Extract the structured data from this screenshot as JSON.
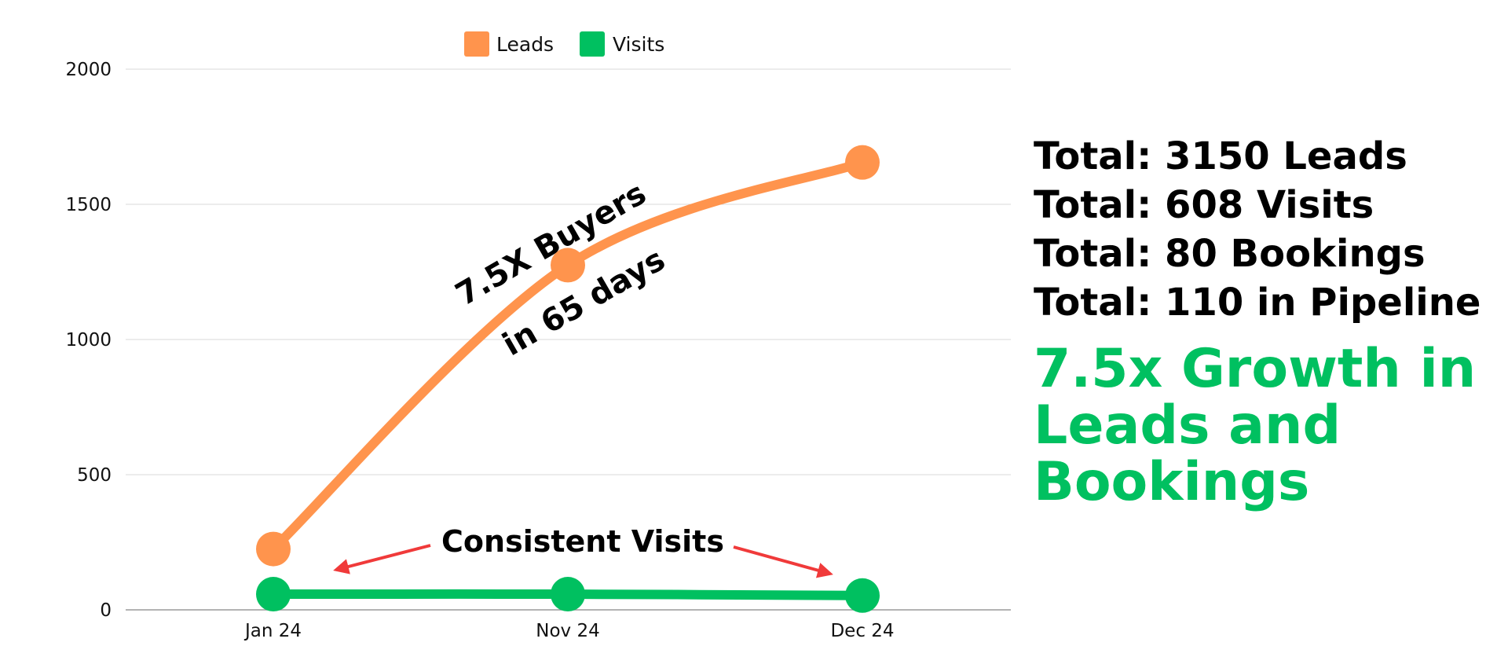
{
  "chart_data": {
    "type": "line",
    "categories": [
      "Jan 24",
      "Nov 24",
      "Dec 24"
    ],
    "series": [
      {
        "name": "Leads",
        "values": [
          225,
          1275,
          1655
        ],
        "color": "#ff944d"
      },
      {
        "name": "Visits",
        "values": [
          58,
          58,
          53
        ],
        "color": "#00c060"
      }
    ],
    "ylim": [
      0,
      2000
    ],
    "yticks": [
      "0",
      "500",
      "1000",
      "1500",
      "2000"
    ],
    "grid": true,
    "legend": "top-center",
    "annotations": {
      "leads_line1": "7.5X Buyers",
      "leads_line2": "in 65 days",
      "visits": "Consistent Visits"
    },
    "annotation_arrow_color": "#f03a3a"
  },
  "stats": [
    "Total: 3150 Leads",
    "Total: 608 Visits",
    "Total: 80 Bookings",
    "Total: 110 in Pipeline"
  ],
  "growth": {
    "lines": [
      "7.5x Growth in",
      "Leads and",
      "Bookings"
    ],
    "color": "#00c060"
  }
}
